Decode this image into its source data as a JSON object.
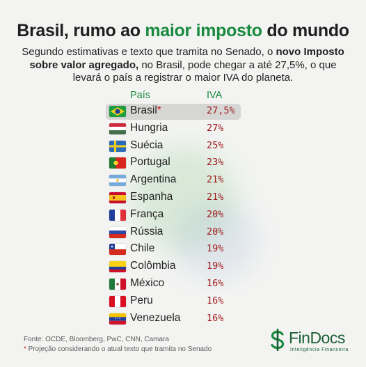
{
  "header": {
    "title_part1": "Brasil, rumo ao ",
    "title_highlight": "maior imposto",
    "title_part2": " do mundo",
    "subtitle_part1": "Segundo estimativas e texto que tramita no Senado, o ",
    "subtitle_bold": "novo Imposto sobre valor agregado,",
    "subtitle_part2": " no Brasil, pode chegar a até 27,5%, o que levará o país a registrar o maior IVA do planeta."
  },
  "chart_data": {
    "type": "table",
    "columns": [
      "País",
      "IVA"
    ],
    "rows": [
      {
        "country": "Brasil",
        "marker": "*",
        "iva_label": "27,5%",
        "iva": 27.5,
        "flag": "brazil-flag",
        "highlight": true
      },
      {
        "country": "Hungria",
        "iva_label": "27%",
        "iva": 27,
        "flag": "hungary-flag"
      },
      {
        "country": "Suécia",
        "iva_label": "25%",
        "iva": 25,
        "flag": "sweden-flag"
      },
      {
        "country": "Portugal",
        "iva_label": "23%",
        "iva": 23,
        "flag": "portugal-flag"
      },
      {
        "country": "Argentina",
        "iva_label": "21%",
        "iva": 21,
        "flag": "argentina-flag"
      },
      {
        "country": "Espanha",
        "iva_label": "21%",
        "iva": 21,
        "flag": "spain-flag"
      },
      {
        "country": "França",
        "iva_label": "20%",
        "iva": 20,
        "flag": "france-flag"
      },
      {
        "country": "Rússia",
        "iva_label": "20%",
        "iva": 20,
        "flag": "russia-flag"
      },
      {
        "country": "Chile",
        "iva_label": "19%",
        "iva": 19,
        "flag": "chile-flag"
      },
      {
        "country": "Colômbia",
        "iva_label": "19%",
        "iva": 19,
        "flag": "colombia-flag"
      },
      {
        "country": "México",
        "iva_label": "16%",
        "iva": 16,
        "flag": "mexico-flag"
      },
      {
        "country": "Peru",
        "iva_label": "16%",
        "iva": 16,
        "flag": "peru-flag"
      },
      {
        "country": "Venezuela",
        "iva_label": "16%",
        "iva": 16,
        "flag": "venezuela-flag"
      }
    ]
  },
  "footer": {
    "source": "Fonte: OCDE, Bloomberg, PwC, CNN, Camara",
    "note_marker": "*",
    "note": " Projeção considerando o atual texto que tramita no Senado"
  },
  "logo": {
    "brand": "FinDocs",
    "tagline": "Inteligência Financeira",
    "icon": "dollar-icon"
  },
  "colors": {
    "accent_green": "#1a8a3e",
    "value_red": "#9e1b1b",
    "highlight_gray": "#d6d6d4",
    "background": "#f3f4f2"
  }
}
